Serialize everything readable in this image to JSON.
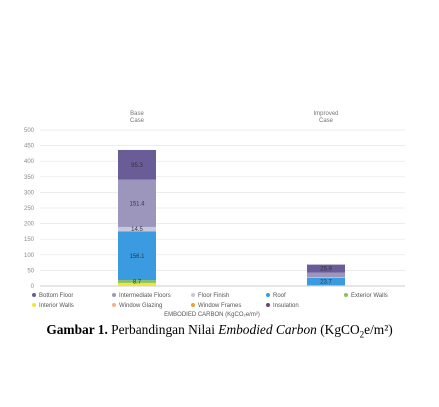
{
  "chart_data": {
    "type": "bar",
    "stacked": true,
    "categories": [
      "Base\nCase",
      "Improved\nCase"
    ],
    "ylim": [
      0,
      500
    ],
    "yticks": [
      0,
      50,
      100,
      150,
      200,
      250,
      300,
      350,
      400,
      450,
      500
    ],
    "xlabel": "EMBODIED CARBON (KgCO₂e/m²)",
    "grid": true,
    "legend_position": "bottom",
    "series": [
      {
        "name": "Interior Walls",
        "color": "#f2e43b",
        "values": [
          10,
          2
        ]
      },
      {
        "name": "Exterior Walls",
        "color": "#8bc34a",
        "values": [
          8.7,
          1
        ]
      },
      {
        "name": "Roof",
        "color": "#3b9be0",
        "values": [
          156.1,
          23.7
        ]
      },
      {
        "name": "Floor Finish",
        "color": "#c8c8dc",
        "values": [
          14.5,
          1
        ]
      },
      {
        "name": "Intermediate Floors",
        "color": "#9d96bc",
        "values": [
          151.4,
          15
        ]
      },
      {
        "name": "Bottom Floor",
        "color": "#6a5c97",
        "values": [
          95.3,
          25.9
        ]
      },
      {
        "name": "Window Glazing",
        "color": "#f4b08a",
        "values": [
          0,
          0
        ]
      },
      {
        "name": "Window Frames",
        "color": "#e8a23a",
        "values": [
          0,
          0
        ]
      },
      {
        "name": "Insulation",
        "color": "#7a3d72",
        "values": [
          0,
          0
        ]
      }
    ],
    "data_labels": [
      {
        "category": 0,
        "series": "Bottom Floor",
        "text": "95.3"
      },
      {
        "category": 0,
        "series": "Intermediate Floors",
        "text": "151.4"
      },
      {
        "category": 0,
        "series": "Floor Finish",
        "text": "14.5"
      },
      {
        "category": 0,
        "series": "Roof",
        "text": "156.1"
      },
      {
        "category": 0,
        "series": "Exterior Walls",
        "text": "8.7"
      },
      {
        "category": 1,
        "series": "Bottom Floor",
        "text": "25.9"
      },
      {
        "category": 1,
        "series": "Roof",
        "text": "23.7"
      }
    ],
    "legend": [
      {
        "name": "Bottom Floor",
        "color": "#6a5c97"
      },
      {
        "name": "Intermediate Floors",
        "color": "#9d96bc"
      },
      {
        "name": "Floor Finish",
        "color": "#c8c8dc"
      },
      {
        "name": "Roof",
        "color": "#3b9be0"
      },
      {
        "name": "Exterior Walls",
        "color": "#8bc34a"
      },
      {
        "name": "Interior Walls",
        "color": "#f2e43b"
      },
      {
        "name": "Window Glazing",
        "color": "#f4b08a"
      },
      {
        "name": "Window Frames",
        "color": "#e8a23a"
      },
      {
        "name": "Insulation",
        "color": "#7a3d72"
      }
    ]
  },
  "caption": {
    "prefix": "Gambar 1.",
    "text_before": " Perbandingan Nilai ",
    "italic": "Embodied Carbon",
    "unit_open": " (KgCO",
    "unit_sub": "2",
    "unit_close": "e/m²)"
  }
}
